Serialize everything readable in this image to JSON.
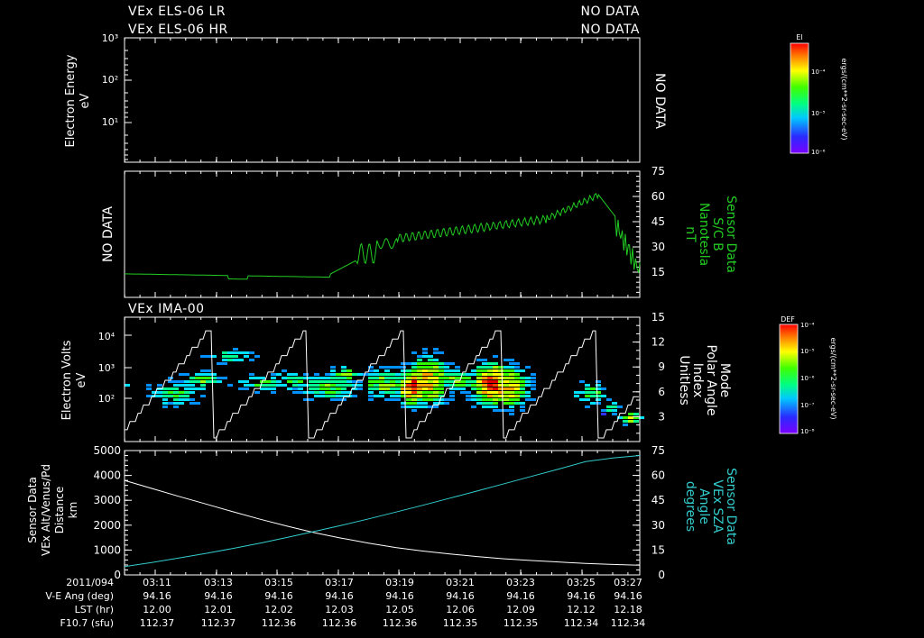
{
  "headers": {
    "els_lr": "VEx ELS-06 LR",
    "els_hr": "VEx ELS-06 HR",
    "no_data_lr": "NO DATA",
    "no_data_hr": "NO DATA",
    "ima": "VEx IMA-00"
  },
  "colors": {
    "axis": "#ffffff",
    "mag": "#22cc22",
    "sza": "#33cccc",
    "dist": "#ffffff"
  },
  "colorbars": [
    {
      "label": "El",
      "ticks": [
        "10⁻⁴",
        "10⁻⁵",
        "10⁻⁶"
      ],
      "side_label": "ergs/(cm**2-sr-sec-eV)"
    },
    {
      "label": "DEF",
      "ticks": [
        "10⁻⁴",
        "10⁻⁵",
        "10⁻⁶",
        "10⁻⁷",
        "10⁻⁸"
      ],
      "side_label": "ergs/(cm**2-sr-sec-eV)"
    }
  ],
  "chart_data": [
    {
      "type": "heatmap",
      "name": "electron-energy",
      "ylabel": "Electron Energy",
      "yunit": "eV",
      "yticks": [
        "10³",
        "10²",
        "10¹"
      ],
      "right_text": "NO DATA"
    },
    {
      "type": "line",
      "name": "magnetic-field",
      "left_text": "NO DATA",
      "right_labels": [
        "Sensor Data",
        "S/C B",
        "Nanotesla",
        "nT"
      ],
      "ylim": [
        0,
        75
      ],
      "yticks": [
        15,
        30,
        45,
        60,
        75
      ],
      "x_minutes": [
        0,
        1,
        2,
        3,
        4,
        4.5,
        5,
        5.5,
        6,
        6.5,
        7,
        7.5,
        7.9,
        8,
        8.2,
        8.4,
        8.6,
        8.8,
        9,
        9.2,
        9.4,
        9.6,
        9.8,
        10,
        10.3,
        10.6,
        11,
        11.3,
        11.6,
        11.9,
        12.2,
        12.5,
        12.8,
        13,
        13.2,
        13.5,
        13.8,
        14,
        14.2,
        14.5,
        14.8,
        15,
        15.3,
        15.6,
        15.9,
        16.2,
        16.5,
        16.8,
        17,
        17.2,
        17.4,
        17.6,
        17.8,
        18,
        18.1,
        18.3,
        18.5,
        18.7,
        18.9,
        19.1,
        19.3,
        19.5,
        19.7,
        19.9,
        20,
        20.2,
        20.4,
        20.6,
        20.8,
        21,
        21.2,
        21.4,
        21.6,
        21.8,
        22,
        22.2,
        22.4,
        22.6,
        22.8,
        23,
        23.2,
        23.4,
        23.6,
        23.8,
        24,
        24.2,
        24.4,
        24.6,
        24.8,
        25,
        25.2,
        25.4,
        25.6,
        25.8,
        26,
        26.2,
        26.5,
        26.8,
        27.1,
        27.4,
        27.7,
        28,
        28.3,
        28.6,
        28.8,
        29,
        29.2,
        29.4,
        29.6,
        29.8,
        30,
        30.2,
        30.4,
        30.6,
        30.8,
        31,
        31.2,
        31.4,
        31.6,
        31.8,
        32,
        32.2,
        32.4,
        32.5,
        32.6,
        32.8,
        33,
        33.2,
        33.4,
        33.6,
        33.8,
        34,
        34.2,
        34.5,
        34.8,
        35,
        35.2,
        35.5,
        35.8,
        36,
        36.2,
        36.4,
        36.6,
        36.8,
        37,
        37.2,
        37.4,
        37.6,
        37.8,
        38,
        38.2,
        38.4,
        38.6,
        38.8,
        39,
        39.2,
        39.4,
        39.6,
        39.8,
        40,
        40.2,
        40.4,
        40.6,
        40.8,
        41,
        41.2,
        41.4,
        41.6,
        41.8,
        42,
        42.2,
        42.4,
        42.6,
        42.8,
        43,
        43.2,
        43.4,
        43.6,
        43.8,
        44,
        44.2,
        44.4,
        44.6,
        44.8,
        45,
        45.2,
        45.4,
        45.6,
        45.8,
        46,
        46.2,
        46.4,
        46.6,
        46.8,
        47,
        47.2,
        47.4,
        47.6,
        47.8,
        48,
        48.2,
        48.4,
        48.6,
        48.8,
        49,
        49.2,
        49.4,
        49.6,
        49.8,
        50,
        50.2,
        50.4,
        50.6,
        50.8,
        51,
        51.2,
        51.4,
        51.6,
        51.8,
        52,
        52.2,
        52.4,
        52.6,
        52.8,
        53,
        53.2,
        53.4,
        53.6,
        53.8,
        54,
        54.2,
        54.4,
        54.6,
        54.8,
        55,
        55.2,
        55.4,
        55.6,
        55.8,
        56,
        56.2,
        56.4,
        56.6,
        56.8,
        57,
        57.2,
        57.4,
        57.6,
        57.8,
        58,
        58.2,
        58.4,
        58.6,
        58.8,
        59,
        59.2,
        59.4,
        59.6,
        59.8,
        60,
        60.2,
        60.4,
        60.6,
        60.8,
        61,
        61.2,
        61.4,
        61.6,
        61.8,
        62,
        62.2,
        62.4,
        62.6,
        62.8,
        63,
        63.2,
        63.4,
        63.6,
        63.8,
        64,
        64.2,
        64.4,
        64.6,
        64.8,
        65,
        65.2,
        65.4,
        65.6,
        65.8,
        66,
        66.2,
        66.4,
        66.6,
        66.8,
        67,
        67.2,
        67.4,
        67.6,
        67.8,
        68,
        68.2,
        68.4,
        68.6,
        68.8,
        69,
        69.2,
        69.4,
        69.6,
        69.8,
        70,
        70.3,
        70.6,
        70.9,
        71.2,
        71.5,
        71.8,
        72,
        72.3,
        72.6,
        72.9,
        73.2,
        73.5,
        73.8,
        74.1,
        74.4,
        74.7,
        75,
        75.3,
        75.6,
        75.9,
        76.2,
        76.5,
        76.8,
        77.1,
        77.4,
        77.7,
        78,
        78.3,
        78.6,
        78.9,
        79.2,
        79.5,
        79.8,
        80,
        80.3,
        80.6,
        80.9,
        81.2,
        81.5,
        81.8,
        82,
        82.3,
        82.6,
        82.9,
        83.2,
        83.5,
        83.8,
        84,
        84.3,
        84.6,
        84.9,
        85.2,
        85.5,
        85.8,
        86,
        86.3,
        86.6,
        86.9,
        87.2,
        87.5,
        87.8,
        88,
        88.3,
        88.6,
        88.9,
        89.2,
        89.5,
        89.8,
        90,
        90.3,
        90.6,
        90.9,
        91.2,
        91.5,
        91.8,
        92,
        92.3,
        92.6,
        92.9,
        93.2,
        93.5,
        93.8,
        94,
        94.3,
        94.6,
        94.9,
        95.2,
        95.5,
        95.8,
        96,
        96.3,
        96.6,
        96.9,
        97.2,
        97.5,
        97.8,
        98,
        98.3,
        98.6,
        98.9,
        99.2,
        99.5,
        99.8,
        100
      ],
      "y_values_note": "fraction of panel span; values generated below"
    },
    {
      "type": "heatmap",
      "name": "ion-spectrogram",
      "ylabel": "Electron Volts",
      "yunit": "eV",
      "yticks": [
        "10⁴",
        "10³",
        "10²"
      ],
      "right_labels": [
        "Mode",
        "Polar Angle",
        "Index",
        "Unitless"
      ],
      "ylim_right": [
        0,
        15
      ],
      "yticks_right": [
        3,
        6,
        9,
        12,
        15
      ],
      "blobs": [
        {
          "t": 0.0,
          "w": 0.012,
          "e": 0.52,
          "s": 0.04,
          "v": 0.3
        },
        {
          "t": 0.12,
          "w": 0.05,
          "e": 0.6,
          "s": 0.08,
          "v": 0.4
        },
        {
          "t": 0.19,
          "w": 0.04,
          "e": 0.5,
          "s": 0.06,
          "v": 0.45
        },
        {
          "t": 0.26,
          "w": 0.05,
          "e": 0.3,
          "s": 0.05,
          "v": 0.35
        },
        {
          "t": 0.35,
          "w": 0.06,
          "e": 0.52,
          "s": 0.05,
          "v": 0.4
        },
        {
          "t": 0.42,
          "w": 0.05,
          "e": 0.5,
          "s": 0.06,
          "v": 0.4
        },
        {
          "t": 0.51,
          "w": 0.06,
          "e": 0.55,
          "s": 0.08,
          "v": 0.45
        },
        {
          "t": 0.55,
          "w": 0.03,
          "e": 0.45,
          "s": 0.05,
          "v": 0.5
        },
        {
          "t": 0.65,
          "w": 0.05,
          "e": 0.52,
          "s": 0.09,
          "v": 0.5
        },
        {
          "t": 0.72,
          "w": 0.025,
          "e": 0.55,
          "s": 0.1,
          "v": 0.95
        },
        {
          "t": 0.76,
          "w": 0.04,
          "e": 0.5,
          "s": 0.14,
          "v": 0.7
        },
        {
          "t": 0.83,
          "w": 0.04,
          "e": 0.5,
          "s": 0.07,
          "v": 0.5
        },
        {
          "t": 0.92,
          "w": 0.035,
          "e": 0.53,
          "s": 0.12,
          "v": 0.9
        },
        {
          "t": 0.96,
          "w": 0.04,
          "e": 0.55,
          "s": 0.12,
          "v": 0.7
        },
        {
          "t": 1.17,
          "w": 0.03,
          "e": 0.6,
          "s": 0.07,
          "v": 0.45
        },
        {
          "t": 1.22,
          "w": 0.015,
          "e": 0.72,
          "s": 0.05,
          "v": 0.4
        },
        {
          "t": 1.27,
          "w": 0.02,
          "e": 0.8,
          "s": 0.04,
          "v": 0.6
        }
      ]
    },
    {
      "type": "line",
      "name": "distance-sza",
      "ylabel_lines": [
        "Sensor Data",
        "VEx Alt/Venus/Pd",
        "Distance",
        "km"
      ],
      "right_labels": [
        "Sensor Data",
        "VEx SZA",
        "Angle",
        "degrees"
      ],
      "ylim": [
        0,
        5000
      ],
      "yticks": [
        0,
        1000,
        2000,
        3000,
        4000,
        5000
      ],
      "ylim_right": [
        0,
        75
      ],
      "yticks_right": [
        0,
        15,
        30,
        45,
        60,
        75
      ],
      "distance_km": [
        3800,
        3480,
        3160,
        2850,
        2540,
        2240,
        1960,
        1700,
        1480,
        1280,
        1100,
        960,
        840,
        740,
        650,
        580,
        520,
        460,
        420,
        390
      ],
      "sza_deg": [
        5,
        7.5,
        10.2,
        13,
        16,
        19.2,
        22.6,
        26.2,
        29.9,
        33.8,
        37.9,
        42,
        46.3,
        50.6,
        55,
        59.4,
        63.8,
        68.3,
        70.5,
        72
      ]
    }
  ],
  "time_axis": {
    "ticks": [
      "03:11",
      "03:13",
      "03:15",
      "03:17",
      "03:19",
      "03:21",
      "03:23",
      "03:25",
      "03:27"
    ],
    "rows": [
      {
        "label": "2011/094",
        "values": [
          "03:11",
          "03:13",
          "03:15",
          "03:17",
          "03:19",
          "03:21",
          "03:23",
          "03:25",
          "03:27"
        ]
      },
      {
        "label": "V-E Ang (deg)",
        "values": [
          "94.16",
          "94.16",
          "94.16",
          "94.16",
          "94.16",
          "94.16",
          "94.16",
          "94.16",
          "94.16"
        ]
      },
      {
        "label": "LST (hr)",
        "values": [
          "12.00",
          "12.01",
          "12.02",
          "12.03",
          "12.05",
          "12.06",
          "12.09",
          "12.12",
          "12.18"
        ]
      },
      {
        "label": "F10.7 (sfu)",
        "values": [
          "112.37",
          "112.37",
          "112.36",
          "112.36",
          "112.36",
          "112.35",
          "112.35",
          "112.34",
          "112.34"
        ]
      }
    ]
  }
}
